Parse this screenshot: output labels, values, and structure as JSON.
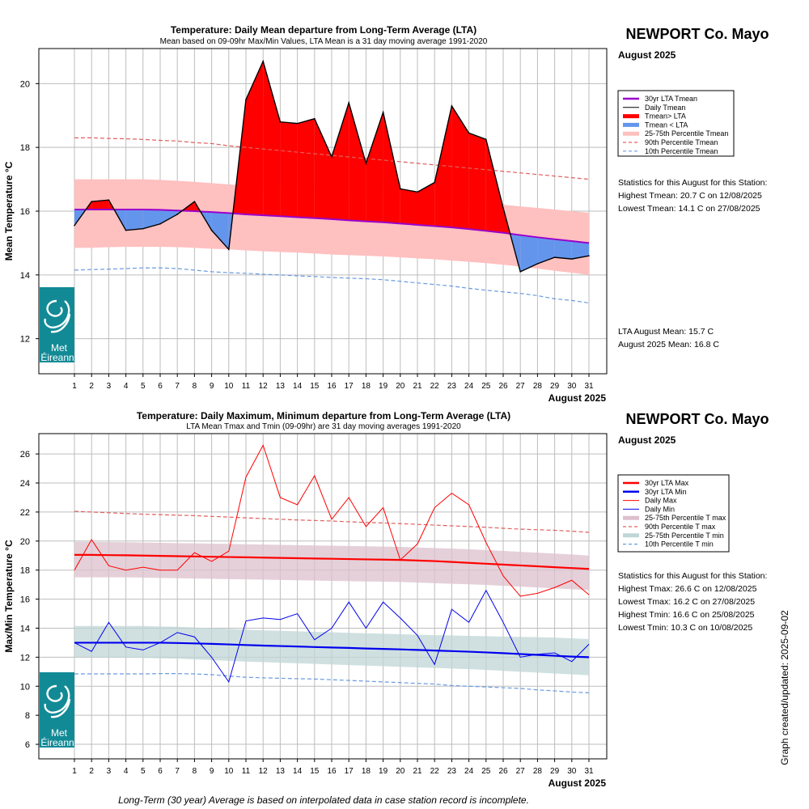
{
  "chart_data": [
    {
      "type": "area",
      "title": "Temperature: Daily Mean departure from Long-Term Average (LTA)",
      "subtitle": "Mean based on 09-09hr Max/Min Values, LTA Mean is a 31 day moving average 1991-2020",
      "station": "NEWPORT Co. Mayo",
      "month_label": "August 2025",
      "xlabel": "August 2025",
      "ylabel": "Mean Temperature °C",
      "ylim": [
        10.9,
        21.1
      ],
      "yticks": [
        12,
        14,
        16,
        18,
        20
      ],
      "x": [
        1,
        2,
        3,
        4,
        5,
        6,
        7,
        8,
        9,
        10,
        11,
        12,
        13,
        14,
        15,
        16,
        17,
        18,
        19,
        20,
        21,
        22,
        23,
        24,
        25,
        26,
        27,
        28,
        29,
        30,
        31
      ],
      "series": [
        {
          "name": "30yr LTA Tmean",
          "color": "#9900cc",
          "values": [
            16.05,
            16.05,
            16.05,
            16.05,
            16.05,
            16.04,
            16.02,
            16.0,
            15.97,
            15.94,
            15.9,
            15.87,
            15.84,
            15.81,
            15.78,
            15.75,
            15.71,
            15.68,
            15.65,
            15.61,
            15.57,
            15.53,
            15.49,
            15.44,
            15.38,
            15.32,
            15.25,
            15.18,
            15.12,
            15.06,
            15.0
          ]
        },
        {
          "name": "Daily Tmean",
          "color": "#000000",
          "values": [
            15.55,
            16.3,
            16.35,
            15.4,
            15.45,
            15.6,
            15.9,
            16.3,
            15.4,
            14.8,
            19.5,
            20.7,
            18.8,
            18.75,
            18.9,
            17.7,
            19.4,
            17.5,
            19.1,
            16.7,
            16.6,
            16.9,
            19.3,
            18.45,
            18.25,
            16.1,
            14.1,
            14.35,
            14.55,
            14.5,
            14.6
          ]
        },
        {
          "name": "90th Percentile Tmean",
          "color": "#e06060",
          "values": [
            18.3,
            18.3,
            18.28,
            18.27,
            18.25,
            18.22,
            18.2,
            18.15,
            18.12,
            18.05,
            18.0,
            17.95,
            17.9,
            17.85,
            17.8,
            17.75,
            17.7,
            17.65,
            17.6,
            17.55,
            17.5,
            17.45,
            17.4,
            17.35,
            17.3,
            17.25,
            17.2,
            17.15,
            17.1,
            17.05,
            17.0
          ]
        },
        {
          "name": "10th Percentile Tmean",
          "color": "#6a9ae0",
          "values": [
            14.15,
            14.17,
            14.18,
            14.2,
            14.22,
            14.22,
            14.2,
            14.15,
            14.1,
            14.07,
            14.05,
            14.02,
            14.0,
            13.97,
            13.95,
            13.92,
            13.9,
            13.88,
            13.85,
            13.8,
            13.75,
            13.7,
            13.65,
            13.58,
            13.52,
            13.47,
            13.42,
            13.35,
            13.25,
            13.2,
            13.12
          ]
        },
        {
          "name": "25-75th Percentile Tmean",
          "color": "#ffc0c0",
          "upper": [
            17.0,
            17.0,
            17.0,
            17.0,
            17.0,
            16.98,
            16.95,
            16.92,
            16.88,
            16.84,
            16.8,
            16.76,
            16.72,
            16.68,
            16.64,
            16.6,
            16.56,
            16.52,
            16.48,
            16.44,
            16.4,
            16.36,
            16.32,
            16.28,
            16.24,
            16.2,
            16.15,
            16.1,
            16.05,
            16.0,
            15.95
          ],
          "lower": [
            14.85,
            14.85,
            14.87,
            14.88,
            14.88,
            14.88,
            14.87,
            14.85,
            14.82,
            14.8,
            14.77,
            14.74,
            14.72,
            14.7,
            14.67,
            14.64,
            14.62,
            14.6,
            14.58,
            14.55,
            14.52,
            14.49,
            14.45,
            14.41,
            14.37,
            14.32,
            14.26,
            14.2,
            14.13,
            14.07,
            14.0
          ]
        }
      ],
      "fill_above_color": "#ff0000",
      "fill_below_color": "#6495ed",
      "legend": [
        {
          "label": "30yr LTA Tmean",
          "style": "line",
          "color": "#9900cc"
        },
        {
          "label": "Daily Tmean",
          "style": "thin",
          "color": "#000000"
        },
        {
          "label": "Tmean> LTA",
          "style": "thick",
          "color": "#ff0000"
        },
        {
          "label": "Tmean < LTA",
          "style": "thick",
          "color": "#6495ed"
        },
        {
          "label": "25-75th Percentile Tmean",
          "style": "thick",
          "color": "#ffc0c0"
        },
        {
          "label": "90th Percentile Tmean",
          "style": "dash",
          "color": "#e06060"
        },
        {
          "label": "10th Percentile Tmean",
          "style": "dash",
          "color": "#6a9ae0"
        }
      ],
      "legend_position": "right",
      "stats_title": "Statistics for this August for this Station:",
      "stats": [
        "Highest Tmean: 20.7 C on 12/08/2025",
        "Lowest Tmean: 14.1 C on 27/08/2025"
      ],
      "means": [
        "LTA August Mean: 15.7 C",
        "August 2025 Mean: 16.8 C"
      ],
      "grid": true
    },
    {
      "type": "line",
      "title": "Temperature: Daily Maximum, Minimum departure from Long-Term Average (LTA)",
      "subtitle": "LTA Mean Tmax and Tmin (09-09hr) are 31 day moving averages 1991-2020",
      "station": "NEWPORT Co. Mayo",
      "month_label": "August 2025",
      "xlabel": "August 2025",
      "ylabel": "Max/Min Temperature °C",
      "ylim": [
        5.0,
        27.4
      ],
      "yticks": [
        6,
        8,
        10,
        12,
        14,
        16,
        18,
        20,
        22,
        24,
        26
      ],
      "x": [
        1,
        2,
        3,
        4,
        5,
        6,
        7,
        8,
        9,
        10,
        11,
        12,
        13,
        14,
        15,
        16,
        17,
        18,
        19,
        20,
        21,
        22,
        23,
        24,
        25,
        26,
        27,
        28,
        29,
        30,
        31
      ],
      "series": [
        {
          "name": "30yr LTA Max",
          "color": "#ff0000",
          "values": [
            19.05,
            19.05,
            19.03,
            19.02,
            19.0,
            18.98,
            18.96,
            18.94,
            18.92,
            18.9,
            18.88,
            18.86,
            18.84,
            18.82,
            18.8,
            18.78,
            18.76,
            18.74,
            18.72,
            18.7,
            18.66,
            18.62,
            18.56,
            18.5,
            18.44,
            18.38,
            18.32,
            18.26,
            18.2,
            18.14,
            18.08
          ]
        },
        {
          "name": "30yr LTA Min",
          "color": "#0000ee",
          "values": [
            13.0,
            13.0,
            13.0,
            13.0,
            13.0,
            13.0,
            12.98,
            12.95,
            12.92,
            12.88,
            12.84,
            12.8,
            12.77,
            12.74,
            12.7,
            12.67,
            12.64,
            12.6,
            12.57,
            12.54,
            12.5,
            12.46,
            12.42,
            12.38,
            12.33,
            12.28,
            12.22,
            12.16,
            12.1,
            12.04,
            12.0
          ]
        },
        {
          "name": "Daily Max",
          "color": "#ff0000",
          "values": [
            18.0,
            20.1,
            18.3,
            18.0,
            18.2,
            18.0,
            18.0,
            19.2,
            18.6,
            19.3,
            24.4,
            26.6,
            23.0,
            22.5,
            24.5,
            21.5,
            23.0,
            21.0,
            22.3,
            18.7,
            19.8,
            22.3,
            23.3,
            22.5,
            19.9,
            17.6,
            16.2,
            16.4,
            16.8,
            17.3,
            16.3
          ]
        },
        {
          "name": "Daily Min",
          "color": "#0000ee",
          "values": [
            13.0,
            12.4,
            14.4,
            12.7,
            12.5,
            13.0,
            13.7,
            13.4,
            12.0,
            10.3,
            14.5,
            14.7,
            14.6,
            15.0,
            13.2,
            14.0,
            15.8,
            14.0,
            15.8,
            14.7,
            13.5,
            11.5,
            15.3,
            14.4,
            16.6,
            14.4,
            12.0,
            12.2,
            12.3,
            11.7,
            12.9
          ]
        },
        {
          "name": "90th Percentile T max",
          "color": "#e06060",
          "values": [
            22.05,
            22.0,
            21.95,
            21.9,
            21.85,
            21.82,
            21.78,
            21.75,
            21.7,
            21.65,
            21.6,
            21.55,
            21.5,
            21.45,
            21.42,
            21.38,
            21.33,
            21.28,
            21.25,
            21.2,
            21.15,
            21.1,
            21.05,
            21.0,
            20.95,
            20.88,
            20.82,
            20.78,
            20.74,
            20.68,
            20.6
          ]
        },
        {
          "name": "10th Percentile T min",
          "color": "#6a9ae0",
          "values": [
            10.85,
            10.85,
            10.85,
            10.85,
            10.85,
            10.87,
            10.87,
            10.85,
            10.8,
            10.7,
            10.62,
            10.58,
            10.55,
            10.52,
            10.5,
            10.45,
            10.4,
            10.35,
            10.3,
            10.25,
            10.2,
            10.15,
            10.05,
            10.0,
            9.95,
            9.9,
            9.85,
            9.75,
            9.68,
            9.6,
            9.55
          ]
        },
        {
          "name": "25-75th Percentile T max",
          "color": "#dcc0cc",
          "upper": [
            19.95,
            19.95,
            19.93,
            19.92,
            19.9,
            19.88,
            19.86,
            19.84,
            19.82,
            19.8,
            19.78,
            19.76,
            19.74,
            19.72,
            19.7,
            19.68,
            19.66,
            19.64,
            19.62,
            19.6,
            19.56,
            19.52,
            19.48,
            19.44,
            19.38,
            19.32,
            19.26,
            19.2,
            19.14,
            19.08,
            19.0
          ]
        },
        {
          "name": "25-75th Percentile T min",
          "color": "#c0d6d6",
          "upper": [
            14.15,
            14.15,
            14.15,
            14.15,
            14.15,
            14.12,
            14.1,
            14.05,
            14.0,
            13.95,
            13.9,
            13.85,
            13.82,
            13.78,
            13.75,
            13.72,
            13.68,
            13.65,
            13.62,
            13.58,
            13.55,
            13.52,
            13.5,
            13.47,
            13.45,
            13.42,
            13.4,
            13.38,
            13.35,
            13.3,
            13.25
          ]
        }
      ],
      "bands_lower": {
        "25-75th Percentile T max": [
          17.5,
          17.5,
          17.5,
          17.5,
          17.48,
          17.46,
          17.44,
          17.42,
          17.4,
          17.38,
          17.36,
          17.34,
          17.32,
          17.3,
          17.28,
          17.26,
          17.24,
          17.22,
          17.2,
          17.18,
          17.14,
          17.1,
          17.06,
          17.02,
          16.98,
          16.92,
          16.86,
          16.8,
          16.74,
          16.68,
          16.62
        ],
        "25-75th Percentile T min": [
          12.0,
          12.0,
          11.98,
          11.97,
          11.95,
          11.92,
          11.9,
          11.85,
          11.8,
          11.75,
          11.7,
          11.66,
          11.62,
          11.58,
          11.54,
          11.5,
          11.46,
          11.42,
          11.38,
          11.34,
          11.3,
          11.26,
          11.22,
          11.18,
          11.12,
          11.06,
          11.0,
          10.94,
          10.88,
          10.82,
          10.75
        ]
      },
      "legend": [
        {
          "label": "30yr LTA Max",
          "style": "line",
          "color": "#ff0000"
        },
        {
          "label": "30yr LTA Min",
          "style": "line",
          "color": "#0000ee"
        },
        {
          "label": "Daily Max",
          "style": "thin",
          "color": "#ff0000"
        },
        {
          "label": "Daily Min",
          "style": "thin",
          "color": "#0000ee"
        },
        {
          "label": "25-75th Percentile T max",
          "style": "thick",
          "color": "#dcc0cc"
        },
        {
          "label": "90th Percentile T max",
          "style": "dash",
          "color": "#e06060"
        },
        {
          "label": "25-75th Percentile T min",
          "style": "thick",
          "color": "#c0d6d6"
        },
        {
          "label": "10th Percentile T min",
          "style": "dash",
          "color": "#6a9ae0"
        }
      ],
      "legend_position": "right",
      "stats_title": "Statistics for this August for this Station:",
      "stats": [
        "Highest Tmax: 26.6 C on 12/08/2025",
        "Lowest Tmax: 16.2 C on 27/08/2025",
        "Highest Tmin: 16.6 C on 25/08/2025",
        "Lowest Tmin: 10.3 C on 10/08/2025"
      ],
      "grid": true
    }
  ],
  "logo": {
    "name": "met-eireann-logo",
    "line1": "Met",
    "line2": "Éireann",
    "color": "#128a96"
  },
  "footer": "Long-Term (30 year) Average is based on interpolated data in case station record is incomplete.",
  "side_note": "Graph created/updated:  2025-09-02"
}
